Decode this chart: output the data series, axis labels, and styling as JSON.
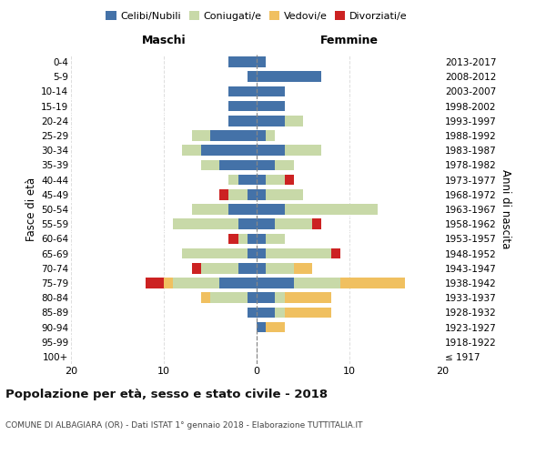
{
  "age_groups": [
    "100+",
    "95-99",
    "90-94",
    "85-89",
    "80-84",
    "75-79",
    "70-74",
    "65-69",
    "60-64",
    "55-59",
    "50-54",
    "45-49",
    "40-44",
    "35-39",
    "30-34",
    "25-29",
    "20-24",
    "15-19",
    "10-14",
    "5-9",
    "0-4"
  ],
  "birth_years": [
    "≤ 1917",
    "1918-1922",
    "1923-1927",
    "1928-1932",
    "1933-1937",
    "1938-1942",
    "1943-1947",
    "1948-1952",
    "1953-1957",
    "1958-1962",
    "1963-1967",
    "1968-1972",
    "1973-1977",
    "1978-1982",
    "1983-1987",
    "1988-1992",
    "1993-1997",
    "1998-2002",
    "2003-2007",
    "2008-2012",
    "2013-2017"
  ],
  "maschi": {
    "celibi": [
      0,
      0,
      0,
      1,
      1,
      4,
      2,
      1,
      1,
      2,
      3,
      1,
      2,
      4,
      6,
      5,
      3,
      3,
      3,
      1,
      3
    ],
    "coniugati": [
      0,
      0,
      0,
      0,
      4,
      5,
      4,
      7,
      1,
      7,
      4,
      2,
      1,
      2,
      2,
      2,
      0,
      0,
      0,
      0,
      0
    ],
    "vedovi": [
      0,
      0,
      0,
      0,
      1,
      1,
      0,
      0,
      0,
      0,
      0,
      0,
      0,
      0,
      0,
      0,
      0,
      0,
      0,
      0,
      0
    ],
    "divorziati": [
      0,
      0,
      0,
      0,
      0,
      2,
      1,
      0,
      1,
      0,
      0,
      1,
      0,
      0,
      0,
      0,
      0,
      0,
      0,
      0,
      0
    ]
  },
  "femmine": {
    "nubili": [
      0,
      0,
      1,
      2,
      2,
      4,
      1,
      1,
      1,
      2,
      3,
      1,
      1,
      2,
      3,
      1,
      3,
      3,
      3,
      7,
      1
    ],
    "coniugate": [
      0,
      0,
      0,
      1,
      1,
      5,
      3,
      7,
      2,
      4,
      10,
      4,
      2,
      2,
      4,
      1,
      2,
      0,
      0,
      0,
      0
    ],
    "vedove": [
      0,
      0,
      2,
      5,
      5,
      7,
      2,
      0,
      0,
      0,
      0,
      0,
      0,
      0,
      0,
      0,
      0,
      0,
      0,
      0,
      0
    ],
    "divorziate": [
      0,
      0,
      0,
      0,
      0,
      0,
      0,
      1,
      0,
      1,
      0,
      0,
      1,
      0,
      0,
      0,
      0,
      0,
      0,
      0,
      0
    ]
  },
  "colors": {
    "celibi": "#4472a8",
    "coniugati": "#c8d9a8",
    "vedovi": "#f0c060",
    "divorziati": "#cc2222"
  },
  "xlim": [
    -20,
    20
  ],
  "xticks": [
    -20,
    -10,
    0,
    10,
    20
  ],
  "xticklabels": [
    "20",
    "10",
    "0",
    "10",
    "20"
  ],
  "title": "Popolazione per età, sesso e stato civile - 2018",
  "subtitle": "COMUNE DI ALBAGIARA (OR) - Dati ISTAT 1° gennaio 2018 - Elaborazione TUTTITALIA.IT",
  "ylabel_left": "Fasce di età",
  "ylabel_right": "Anni di nascita",
  "label_maschi": "Maschi",
  "label_femmine": "Femmine",
  "legend_labels": [
    "Celibi/Nubili",
    "Coniugati/e",
    "Vedovi/e",
    "Divorziati/e"
  ],
  "bg_color": "#ffffff",
  "grid_color": "#dddddd"
}
